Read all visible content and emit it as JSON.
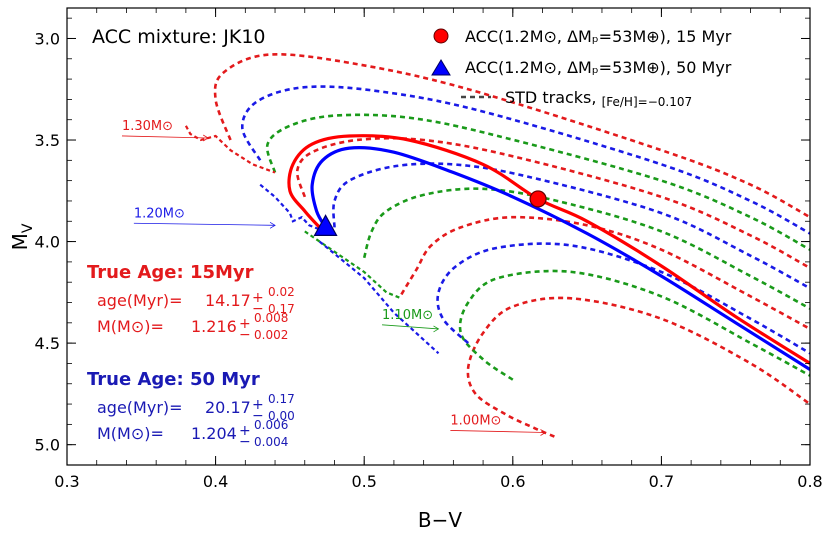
{
  "chart_data": {
    "type": "line",
    "title": "ACC mixture: JK10",
    "xlabel": "B−V",
    "ylabel": "M",
    "ylabel_sub": "V",
    "xlim": [
      0.3,
      0.8
    ],
    "ylim": [
      5.1,
      2.85
    ],
    "y_inverted": true,
    "grid": false,
    "xticks": [
      "0.3",
      "0.4",
      "0.5",
      "0.6",
      "0.7",
      "0.8"
    ],
    "yticks": [
      "3.0",
      "3.5",
      "4.0",
      "4.5",
      "5.0"
    ],
    "legend": {
      "placement": "top-right",
      "entries": [
        {
          "marker": "circle",
          "color": "#ff0000",
          "label": "ACC(1.2M⊙, ΔMₚ=53M⊕), 15 Myr"
        },
        {
          "marker": "triangle",
          "color": "#0000ff",
          "label": "ACC(1.2M⊙, ΔMₚ=53M⊕), 50 Myr"
        },
        {
          "marker": "dash",
          "color": "#444444",
          "label": "STD tracks,",
          "label_small": "[Fe/H]=−0.107"
        }
      ]
    },
    "track_colors": [
      "#e31a1c",
      "#1a9a1a",
      "#1a1ae6"
    ],
    "std_tracks_note": "dashed evolutionary tracks, masses 1.00–1.30 M⊙, color cycling red/green/blue",
    "std_tracks": [
      [
        [
          0.628,
          4.96
        ],
        [
          0.615,
          4.92
        ],
        [
          0.595,
          4.85
        ],
        [
          0.575,
          4.75
        ],
        [
          0.57,
          4.62
        ],
        [
          0.58,
          4.45
        ],
        [
          0.6,
          4.32
        ],
        [
          0.64,
          4.28
        ],
        [
          0.7,
          4.38
        ],
        [
          0.76,
          4.6
        ],
        [
          0.8,
          4.8
        ]
      ],
      [
        [
          0.6,
          4.68
        ],
        [
          0.58,
          4.58
        ],
        [
          0.565,
          4.45
        ],
        [
          0.57,
          4.3
        ],
        [
          0.59,
          4.18
        ],
        [
          0.64,
          4.15
        ],
        [
          0.7,
          4.27
        ],
        [
          0.76,
          4.5
        ],
        [
          0.8,
          4.66
        ]
      ],
      [
        [
          0.57,
          4.5
        ],
        [
          0.553,
          4.38
        ],
        [
          0.55,
          4.25
        ],
        [
          0.562,
          4.12
        ],
        [
          0.59,
          4.03
        ],
        [
          0.64,
          4.02
        ],
        [
          0.7,
          4.15
        ],
        [
          0.76,
          4.38
        ],
        [
          0.8,
          4.55
        ]
      ],
      [
        [
          0.525,
          4.26
        ],
        [
          0.535,
          4.14
        ],
        [
          0.545,
          4.02
        ],
        [
          0.565,
          3.93
        ],
        [
          0.6,
          3.88
        ],
        [
          0.65,
          3.92
        ],
        [
          0.7,
          4.04
        ],
        [
          0.76,
          4.27
        ],
        [
          0.8,
          4.43
        ]
      ],
      [
        [
          0.5,
          4.08
        ],
        [
          0.505,
          3.95
        ],
        [
          0.515,
          3.85
        ],
        [
          0.54,
          3.77
        ],
        [
          0.58,
          3.74
        ],
        [
          0.63,
          3.8
        ],
        [
          0.7,
          3.95
        ],
        [
          0.76,
          4.17
        ],
        [
          0.8,
          4.33
        ]
      ],
      [
        [
          0.48,
          3.93
        ],
        [
          0.48,
          3.8
        ],
        [
          0.49,
          3.7
        ],
        [
          0.52,
          3.63
        ],
        [
          0.56,
          3.62
        ],
        [
          0.61,
          3.68
        ],
        [
          0.7,
          3.86
        ],
        [
          0.76,
          4.07
        ],
        [
          0.8,
          4.23
        ]
      ],
      [
        [
          0.46,
          3.78
        ],
        [
          0.455,
          3.65
        ],
        [
          0.465,
          3.56
        ],
        [
          0.495,
          3.5
        ],
        [
          0.54,
          3.5
        ],
        [
          0.6,
          3.58
        ],
        [
          0.7,
          3.78
        ],
        [
          0.76,
          3.97
        ],
        [
          0.8,
          4.13
        ]
      ],
      [
        [
          0.44,
          3.66
        ],
        [
          0.435,
          3.52
        ],
        [
          0.45,
          3.43
        ],
        [
          0.48,
          3.38
        ],
        [
          0.53,
          3.39
        ],
        [
          0.59,
          3.48
        ],
        [
          0.7,
          3.7
        ],
        [
          0.76,
          3.88
        ],
        [
          0.8,
          4.04
        ]
      ],
      [
        [
          0.43,
          3.6
        ],
        [
          0.418,
          3.44
        ],
        [
          0.428,
          3.31
        ],
        [
          0.46,
          3.24
        ],
        [
          0.51,
          3.26
        ],
        [
          0.58,
          3.36
        ],
        [
          0.7,
          3.62
        ],
        [
          0.76,
          3.8
        ],
        [
          0.8,
          3.96
        ]
      ],
      [
        [
          0.41,
          3.5
        ],
        [
          0.4,
          3.3
        ],
        [
          0.405,
          3.17
        ],
        [
          0.435,
          3.08
        ],
        [
          0.49,
          3.12
        ],
        [
          0.57,
          3.25
        ],
        [
          0.7,
          3.55
        ],
        [
          0.76,
          3.72
        ],
        [
          0.8,
          3.88
        ]
      ]
    ],
    "hook_tracks": [
      {
        "color": "#e31a1c",
        "points": [
          [
            0.38,
            3.43
          ],
          [
            0.383,
            3.47
          ],
          [
            0.39,
            3.5
          ],
          [
            0.4,
            3.48
          ],
          [
            0.41,
            3.55
          ],
          [
            0.425,
            3.62
          ],
          [
            0.44,
            3.66
          ]
        ]
      },
      {
        "color": "#1a1ae6",
        "points": [
          [
            0.43,
            3.72
          ],
          [
            0.44,
            3.78
          ],
          [
            0.45,
            3.86
          ],
          [
            0.452,
            3.9
          ],
          [
            0.458,
            3.88
          ],
          [
            0.463,
            3.92
          ],
          [
            0.47,
            3.94
          ]
        ]
      },
      {
        "color": "#1a9a1a",
        "points": [
          [
            0.46,
            3.95
          ],
          [
            0.48,
            4.05
          ],
          [
            0.5,
            4.15
          ],
          [
            0.515,
            4.25
          ],
          [
            0.525,
            4.28
          ]
        ]
      },
      {
        "color": "#1a1ae6",
        "points": [
          [
            0.47,
            4.0
          ],
          [
            0.5,
            4.18
          ],
          [
            0.52,
            4.35
          ],
          [
            0.535,
            4.45
          ],
          [
            0.55,
            4.55
          ]
        ]
      }
    ],
    "series": [
      {
        "name": "ACC(1.2M⊙, ΔMₚ=53M⊕), 15 Myr",
        "color": "#ff0000",
        "x": [
          0.47,
          0.46,
          0.45,
          0.452,
          0.465,
          0.49,
          0.53,
          0.58,
          0.617,
          0.65,
          0.7,
          0.75,
          0.8
        ],
        "y": [
          3.93,
          3.85,
          3.75,
          3.62,
          3.52,
          3.48,
          3.5,
          3.62,
          3.79,
          3.9,
          4.12,
          4.37,
          4.6
        ]
      },
      {
        "name": "ACC(1.2M⊙, ΔMₚ=53M⊕), 50 Myr",
        "color": "#0000ff",
        "x": [
          0.474,
          0.468,
          0.465,
          0.472,
          0.49,
          0.52,
          0.56,
          0.6,
          0.65,
          0.7,
          0.75,
          0.8
        ],
        "y": [
          3.93,
          3.85,
          3.72,
          3.6,
          3.54,
          3.56,
          3.66,
          3.78,
          3.96,
          4.17,
          4.4,
          4.63
        ]
      }
    ],
    "markers": [
      {
        "name": "15 Myr",
        "shape": "circle",
        "color": "#ff0000",
        "x": 0.617,
        "y": 3.79
      },
      {
        "name": "50 Myr",
        "shape": "triangle",
        "color": "#0000ff",
        "x": 0.474,
        "y": 3.93
      }
    ],
    "mass_labels": [
      {
        "text": "1.30M⊙",
        "color": "#e31a1c",
        "x": 0.337,
        "y": 3.47,
        "arrow_to": [
          0.395,
          3.49
        ]
      },
      {
        "text": "1.20M⊙",
        "color": "#1a1ae6",
        "x": 0.345,
        "y": 3.9,
        "arrow_to": [
          0.44,
          3.92
        ]
      },
      {
        "text": "1.10M⊙",
        "color": "#1a9a1a",
        "x": 0.512,
        "y": 4.4,
        "arrow_to": [
          0.55,
          4.43
        ]
      },
      {
        "text": "1.00M⊙",
        "color": "#e31a1c",
        "x": 0.558,
        "y": 4.92,
        "arrow_to": [
          0.622,
          4.94
        ]
      }
    ],
    "annotations": [
      {
        "color": "#e31a1c",
        "heading": "True Age: 15Myr",
        "age_label": "age(Myr)=",
        "age_value": "14.17",
        "age_plus": "0.02",
        "age_minus": "0.17",
        "mass_label": "M(M⊙)=",
        "mass_value": "1.216",
        "mass_plus": "0.008",
        "mass_minus": "0.002"
      },
      {
        "color": "#1a1ab4",
        "heading": "True Age: 50 Myr",
        "age_label": "age(Myr)=",
        "age_value": "20.17",
        "age_plus": "0.17",
        "age_minus": "0.00",
        "mass_label": "M(M⊙)=",
        "mass_value": "1.204",
        "mass_plus": "0.006",
        "mass_minus": "0.004"
      }
    ]
  }
}
